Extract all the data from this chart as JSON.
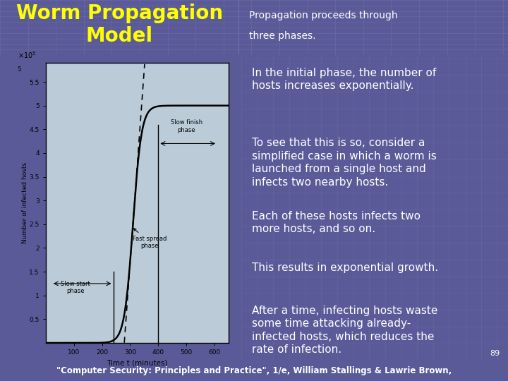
{
  "title_color": "#FFFF00",
  "header_bg": "#5A5A99",
  "slide_bg": "#5A5A99",
  "plot_area_bg": "#BBCCD8",
  "bottom_bg": "#000077",
  "page_number": "89",
  "bottom_text": "\"Computer Security: Principles and Practice\", 1/e, William Stallings & Lawrie Brown,",
  "xlabel": "Time t (minutes)",
  "ylabel": "Number of infected hosts",
  "xticks": [
    100,
    200,
    300,
    400,
    500,
    600
  ],
  "ytick_labels": [
    "0.5",
    "1",
    "1.5",
    "2",
    "2.5",
    "3",
    "3.5",
    "4",
    "4.5",
    "5",
    "5.5"
  ],
  "ytick_vals": [
    0.5,
    1.0,
    1.5,
    2.0,
    2.5,
    3.0,
    3.5,
    4.0,
    4.5,
    5.0,
    5.5
  ],
  "ylim": [
    0,
    5.9
  ],
  "xlim": [
    0,
    650
  ],
  "right_texts": [
    {
      "text": "In the initial phase, the number of\nhosts increases exponentially.",
      "fs": 11
    },
    {
      "text": "To see that this is so, consider a\nsimplified case in which a worm is\nlaunched from a single host and\ninfects two nearby hosts.",
      "fs": 11
    },
    {
      "text": "Each of these hosts infects two\nmore hosts, and so on.",
      "fs": 11
    },
    {
      "text": "This results in exponential growth.",
      "fs": 11
    },
    {
      "text": "After a time, infecting hosts waste\nsome time attacking already-\ninfected hosts, which reduces the\nrate of infection.",
      "fs": 11
    }
  ]
}
